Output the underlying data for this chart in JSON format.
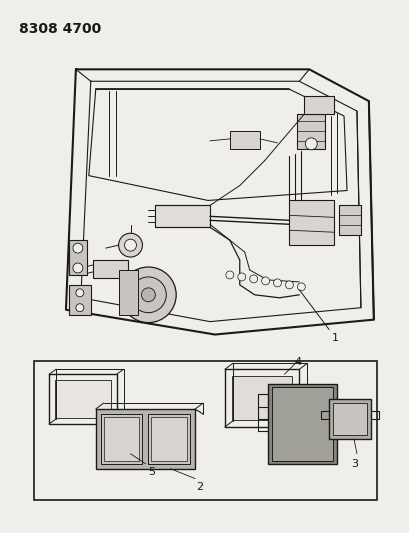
{
  "title": "8308 4700",
  "bg_color": "#f0eeeb",
  "line_color": "#1a1a1a",
  "title_fontsize": 10,
  "fig_width": 4.1,
  "fig_height": 5.33,
  "dpi": 100
}
